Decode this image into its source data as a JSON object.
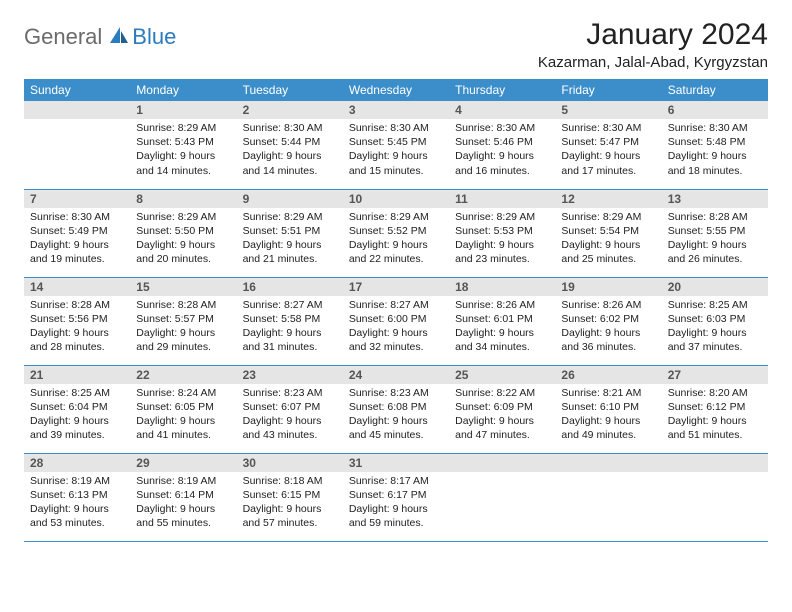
{
  "logo": {
    "general": "General",
    "blue": "Blue"
  },
  "title": "January 2024",
  "location": "Kazarman, Jalal-Abad, Kyrgyzstan",
  "weekdays": [
    "Sunday",
    "Monday",
    "Tuesday",
    "Wednesday",
    "Thursday",
    "Friday",
    "Saturday"
  ],
  "colors": {
    "header_bg": "#3c8ecb",
    "header_text": "#ffffff",
    "daynum_bg": "#e5e5e5",
    "daynum_text": "#555555",
    "body_text": "#222222",
    "rule": "#3c8ecb",
    "logo_gray": "#6b6b6b",
    "logo_blue": "#2b7bbf"
  },
  "grid": [
    [
      null,
      {
        "n": "1",
        "sr": "8:29 AM",
        "ss": "5:43 PM",
        "dl": "9 hours and 14 minutes."
      },
      {
        "n": "2",
        "sr": "8:30 AM",
        "ss": "5:44 PM",
        "dl": "9 hours and 14 minutes."
      },
      {
        "n": "3",
        "sr": "8:30 AM",
        "ss": "5:45 PM",
        "dl": "9 hours and 15 minutes."
      },
      {
        "n": "4",
        "sr": "8:30 AM",
        "ss": "5:46 PM",
        "dl": "9 hours and 16 minutes."
      },
      {
        "n": "5",
        "sr": "8:30 AM",
        "ss": "5:47 PM",
        "dl": "9 hours and 17 minutes."
      },
      {
        "n": "6",
        "sr": "8:30 AM",
        "ss": "5:48 PM",
        "dl": "9 hours and 18 minutes."
      }
    ],
    [
      {
        "n": "7",
        "sr": "8:30 AM",
        "ss": "5:49 PM",
        "dl": "9 hours and 19 minutes."
      },
      {
        "n": "8",
        "sr": "8:29 AM",
        "ss": "5:50 PM",
        "dl": "9 hours and 20 minutes."
      },
      {
        "n": "9",
        "sr": "8:29 AM",
        "ss": "5:51 PM",
        "dl": "9 hours and 21 minutes."
      },
      {
        "n": "10",
        "sr": "8:29 AM",
        "ss": "5:52 PM",
        "dl": "9 hours and 22 minutes."
      },
      {
        "n": "11",
        "sr": "8:29 AM",
        "ss": "5:53 PM",
        "dl": "9 hours and 23 minutes."
      },
      {
        "n": "12",
        "sr": "8:29 AM",
        "ss": "5:54 PM",
        "dl": "9 hours and 25 minutes."
      },
      {
        "n": "13",
        "sr": "8:28 AM",
        "ss": "5:55 PM",
        "dl": "9 hours and 26 minutes."
      }
    ],
    [
      {
        "n": "14",
        "sr": "8:28 AM",
        "ss": "5:56 PM",
        "dl": "9 hours and 28 minutes."
      },
      {
        "n": "15",
        "sr": "8:28 AM",
        "ss": "5:57 PM",
        "dl": "9 hours and 29 minutes."
      },
      {
        "n": "16",
        "sr": "8:27 AM",
        "ss": "5:58 PM",
        "dl": "9 hours and 31 minutes."
      },
      {
        "n": "17",
        "sr": "8:27 AM",
        "ss": "6:00 PM",
        "dl": "9 hours and 32 minutes."
      },
      {
        "n": "18",
        "sr": "8:26 AM",
        "ss": "6:01 PM",
        "dl": "9 hours and 34 minutes."
      },
      {
        "n": "19",
        "sr": "8:26 AM",
        "ss": "6:02 PM",
        "dl": "9 hours and 36 minutes."
      },
      {
        "n": "20",
        "sr": "8:25 AM",
        "ss": "6:03 PM",
        "dl": "9 hours and 37 minutes."
      }
    ],
    [
      {
        "n": "21",
        "sr": "8:25 AM",
        "ss": "6:04 PM",
        "dl": "9 hours and 39 minutes."
      },
      {
        "n": "22",
        "sr": "8:24 AM",
        "ss": "6:05 PM",
        "dl": "9 hours and 41 minutes."
      },
      {
        "n": "23",
        "sr": "8:23 AM",
        "ss": "6:07 PM",
        "dl": "9 hours and 43 minutes."
      },
      {
        "n": "24",
        "sr": "8:23 AM",
        "ss": "6:08 PM",
        "dl": "9 hours and 45 minutes."
      },
      {
        "n": "25",
        "sr": "8:22 AM",
        "ss": "6:09 PM",
        "dl": "9 hours and 47 minutes."
      },
      {
        "n": "26",
        "sr": "8:21 AM",
        "ss": "6:10 PM",
        "dl": "9 hours and 49 minutes."
      },
      {
        "n": "27",
        "sr": "8:20 AM",
        "ss": "6:12 PM",
        "dl": "9 hours and 51 minutes."
      }
    ],
    [
      {
        "n": "28",
        "sr": "8:19 AM",
        "ss": "6:13 PM",
        "dl": "9 hours and 53 minutes."
      },
      {
        "n": "29",
        "sr": "8:19 AM",
        "ss": "6:14 PM",
        "dl": "9 hours and 55 minutes."
      },
      {
        "n": "30",
        "sr": "8:18 AM",
        "ss": "6:15 PM",
        "dl": "9 hours and 57 minutes."
      },
      {
        "n": "31",
        "sr": "8:17 AM",
        "ss": "6:17 PM",
        "dl": "9 hours and 59 minutes."
      },
      null,
      null,
      null
    ]
  ],
  "labels": {
    "sunrise": "Sunrise:",
    "sunset": "Sunset:",
    "daylight": "Daylight:"
  }
}
